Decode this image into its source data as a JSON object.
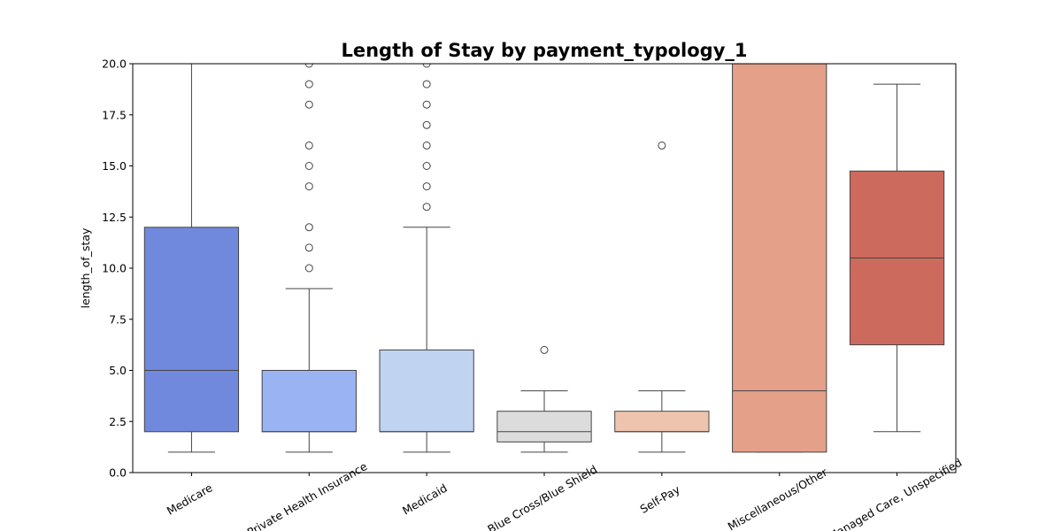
{
  "chart_data": {
    "type": "box",
    "title": "Length of Stay by payment_typology_1",
    "y_label": "length_of_stay",
    "categories": [
      "Medicare",
      "Private Health Insurance",
      "Medicaid",
      "Blue Cross/Blue Shield",
      "Self-Pay",
      "Miscellaneous/Other",
      "Managed Care, Unspecified"
    ],
    "boxes": [
      {
        "color": "#7089dc",
        "whisker_low": 1,
        "q1": 2,
        "median": 5,
        "q3": 12,
        "whisker_high": 20,
        "outliers": []
      },
      {
        "color": "#9ab3f2",
        "whisker_low": 1,
        "q1": 2,
        "median": 2,
        "q3": 5,
        "whisker_high": 9,
        "outliers": [
          10,
          11,
          12,
          14,
          15,
          16,
          18,
          19,
          20
        ]
      },
      {
        "color": "#c0d3f0",
        "whisker_low": 1,
        "q1": 2,
        "median": 2,
        "q3": 6,
        "whisker_high": 12,
        "outliers": [
          13,
          14,
          15,
          16,
          17,
          18,
          19,
          20
        ]
      },
      {
        "color": "#dddcdc",
        "whisker_low": 1,
        "q1": 1.5,
        "median": 2,
        "q3": 3,
        "whisker_high": 4,
        "outliers": [
          6
        ]
      },
      {
        "color": "#efc4ae",
        "whisker_low": 1,
        "q1": 2,
        "median": 2,
        "q3": 3,
        "whisker_high": 4,
        "outliers": [
          16
        ]
      },
      {
        "color": "#e4a089",
        "whisker_low": 1,
        "q1": 1,
        "median": 4,
        "q3": 20,
        "whisker_high": 20,
        "outliers": []
      },
      {
        "color": "#cc6a5d",
        "whisker_low": 2,
        "q1": 6.25,
        "median": 10.5,
        "q3": 14.75,
        "whisker_high": 19,
        "outliers": []
      }
    ],
    "ylim": [
      0,
      20
    ],
    "yticks": [
      {
        "value": 0,
        "label": "0.0"
      },
      2.5,
      {
        "value": 5,
        "label": "5.0"
      },
      7.5,
      {
        "value": 10,
        "label": "10.0"
      },
      12.5,
      {
        "value": 15,
        "label": "15.0"
      },
      17.5,
      {
        "value": 20,
        "label": "20.0"
      }
    ]
  }
}
